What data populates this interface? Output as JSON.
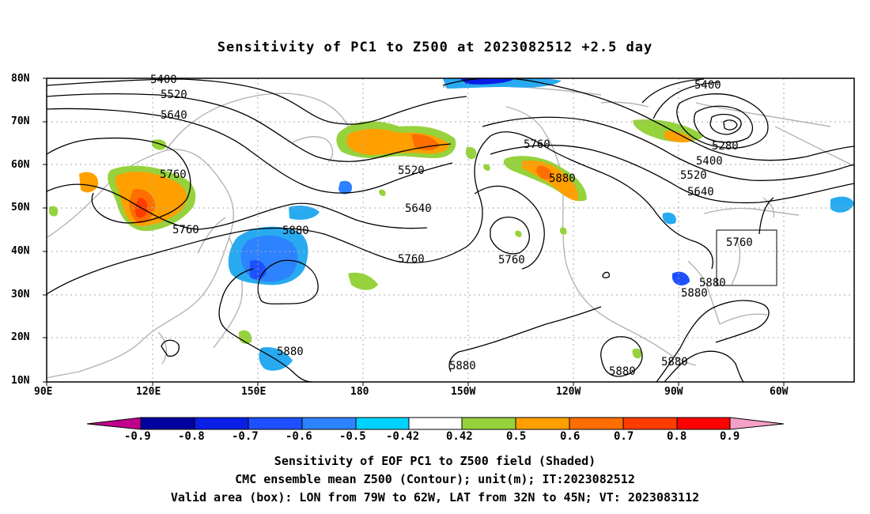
{
  "title": "Sensitivity of PC1 to Z500 at 2023082512 +2.5 day",
  "lat_labels": [
    "80N",
    "70N",
    "60N",
    "50N",
    "40N",
    "30N",
    "20N",
    "10N"
  ],
  "lon_labels": [
    "90E",
    "120E",
    "150E",
    "180",
    "150W",
    "120W",
    "90W",
    "60W"
  ],
  "contour_labels": [
    "5400",
    "5520",
    "5640",
    "5760",
    "5520",
    "5400",
    "5280",
    "5400",
    "5520",
    "5640",
    "5760",
    "5760",
    "5880",
    "5640",
    "5760",
    "5880",
    "5760",
    "5760",
    "5880",
    "5880",
    "5880",
    "5880",
    "5880",
    "5880"
  ],
  "colorbar": {
    "tick_labels": [
      "-0.9",
      "-0.8",
      "-0.7",
      "-0.6",
      "-0.5",
      "-0.42",
      "0.42",
      "0.5",
      "0.6",
      "0.7",
      "0.8",
      "0.9"
    ],
    "colors": [
      "#c0008c",
      "#0000a0",
      "#0a1ee6",
      "#1e50ff",
      "#2d82ff",
      "#28aaf0",
      "#00d2ff",
      "#ffffff",
      "#96d23c",
      "#ffa000",
      "#ff6e00",
      "#ff3c00",
      "#ff0000",
      "#f5a0c8"
    ]
  },
  "footer": {
    "line1": "Sensitivity of EOF PC1 to Z500 field (Shaded)",
    "line2": "CMC ensemble mean Z500 (Contour); unit(m); IT:2023082512",
    "line3": "Valid area (box): LON from 79W to 62W, LAT from 32N to 45N; VT: 2023083112"
  }
}
